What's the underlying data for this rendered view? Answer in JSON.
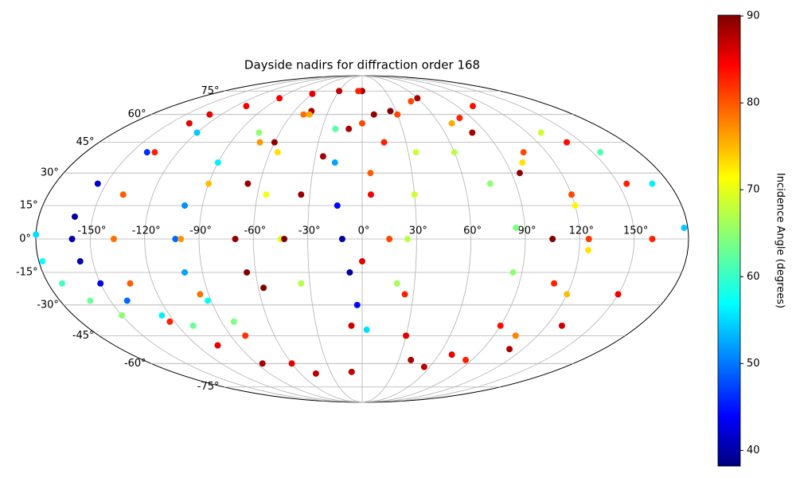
{
  "chart_data": {
    "type": "scatter",
    "projection": "mollweide",
    "colormap": "jet",
    "title": "Dayside nadirs for diffraction order 168",
    "colorbar_label": "Incidence Angle (degrees)",
    "clim": [
      38.2,
      90.1
    ],
    "cticks": [
      40,
      50,
      60,
      70,
      80,
      90
    ],
    "grid": true,
    "xlim": [
      -180,
      180
    ],
    "ylim": [
      -90,
      90
    ],
    "xticks": [
      {
        "value": -150,
        "label": "-150°"
      },
      {
        "value": -120,
        "label": "-120°"
      },
      {
        "value": -90,
        "label": "-90°"
      },
      {
        "value": -60,
        "label": "-60°"
      },
      {
        "value": -30,
        "label": "-30°"
      },
      {
        "value": 0,
        "label": "0°"
      },
      {
        "value": 30,
        "label": "30°"
      },
      {
        "value": 60,
        "label": "60°"
      },
      {
        "value": 90,
        "label": "90°"
      },
      {
        "value": 120,
        "label": "120°"
      },
      {
        "value": 150,
        "label": "150°"
      }
    ],
    "yticks": [
      {
        "value": -75,
        "label": "-75°"
      },
      {
        "value": -60,
        "label": "-60°"
      },
      {
        "value": -45,
        "label": "-45°"
      },
      {
        "value": -30,
        "label": "-30°"
      },
      {
        "value": -15,
        "label": "-15°"
      },
      {
        "value": 0,
        "label": "0°"
      },
      {
        "value": 15,
        "label": "15°"
      },
      {
        "value": 30,
        "label": "30°"
      },
      {
        "value": 45,
        "label": "45°"
      },
      {
        "value": 60,
        "label": "60°"
      },
      {
        "value": 75,
        "label": "75°"
      }
    ],
    "series": [
      {
        "x": [
          -120,
          -140,
          -155,
          -160,
          -160,
          -157,
          -150,
          -140,
          -125,
          -110
        ],
        "y": [
          50,
          40,
          25,
          10,
          0,
          -10,
          -20,
          -28,
          -35,
          -40
        ],
        "values": [
          55,
          47,
          42,
          40,
          40,
          41,
          44,
          50,
          57,
          63
        ]
      },
      {
        "x": [
          -180,
          -178,
          -172,
          -162,
          -150
        ],
        "y": [
          2,
          -10,
          -20,
          -28,
          -35
        ],
        "values": [
          56,
          58,
          61,
          63,
          65
        ]
      },
      {
        "x": [
          -135,
          -135,
          -137,
          -137,
          -133,
          -123,
          -105,
          -85
        ],
        "y": [
          55,
          40,
          20,
          0,
          -20,
          -38,
          -50,
          -60
        ],
        "values": [
          85,
          82,
          79,
          78,
          79,
          82,
          85,
          88
        ]
      },
      {
        "x": [
          -130,
          -110,
          -90,
          -60,
          -30,
          0
        ],
        "y": [
          60,
          65,
          70,
          73,
          75,
          75
        ],
        "values": [
          85,
          84,
          84,
          85,
          87,
          88
        ]
      },
      {
        "x": [
          -75,
          -90,
          -100,
          -103,
          -100,
          -92,
          -82
        ],
        "y": [
          50,
          35,
          15,
          0,
          -15,
          -28,
          -38
        ],
        "values": [
          65,
          57,
          52,
          50,
          53,
          58,
          64
        ]
      },
      {
        "x": [
          -50,
          -70,
          -90,
          -100,
          -95,
          -80,
          -60,
          -45
        ],
        "y": [
          60,
          45,
          25,
          0,
          -25,
          -45,
          -60,
          -66
        ],
        "values": [
          78,
          76,
          74,
          76,
          78,
          81,
          85,
          87
        ]
      },
      {
        "x": [
          -45,
          -60,
          -67,
          -70,
          -65,
          -57
        ],
        "y": [
          62,
          45,
          25,
          0,
          -15,
          -22
        ],
        "values": [
          88,
          89,
          89,
          89,
          90,
          90
        ]
      },
      {
        "x": [
          -45,
          -55,
          -55,
          -45,
          -35
        ],
        "y": [
          60,
          40,
          20,
          0,
          -20
        ],
        "values": [
          75,
          72,
          70,
          69,
          67
        ]
      },
      {
        "x": [
          -20,
          -17,
          -14,
          -11,
          -7,
          -3,
          3
        ],
        "y": [
          52,
          35,
          15,
          0,
          -15,
          -30,
          -42
        ],
        "values": [
          62,
          53,
          45,
          40,
          40,
          45,
          56
        ]
      },
      {
        "x": [
          -43,
          -35,
          -25,
          -10,
          10,
          25
        ],
        "y": [
          0,
          20,
          38,
          52,
          60,
          62
        ],
        "values": [
          90,
          89,
          88,
          88,
          89,
          90
        ]
      },
      {
        "x": [
          -5,
          0,
          5,
          15,
          25,
          30,
          40,
          55,
          70,
          90,
          110,
          125,
          120,
          105,
          80
        ],
        "y": [
          75,
          55,
          30,
          0,
          -25,
          -45,
          -58,
          -62,
          -55,
          -40,
          -20,
          0,
          20,
          40,
          58
        ],
        "values": [
          82,
          80,
          79,
          80,
          82,
          85,
          88,
          87,
          85,
          83,
          82,
          81,
          80,
          80,
          82
        ]
      },
      {
        "x": [
          -10,
          -7,
          0,
          5,
          15,
          30,
          50
        ],
        "y": [
          -65,
          -40,
          -10,
          20,
          45,
          60,
          68
        ],
        "values": [
          87,
          86,
          85,
          84,
          82,
          80,
          80
        ]
      },
      {
        "x": [
          35,
          30,
          25,
          20
        ],
        "y": [
          40,
          20,
          0,
          -20
        ],
        "values": [
          68,
          68,
          67,
          66
        ]
      },
      {
        "x": [
          60,
          75,
          85,
          85
        ],
        "y": [
          40,
          25,
          5,
          -15
        ],
        "values": [
          67,
          65,
          64,
          65
        ]
      },
      {
        "x": [
          60,
          80,
          95,
          105
        ],
        "y": [
          70,
          50,
          30,
          0
        ],
        "values": [
          88,
          88,
          89,
          90
        ]
      },
      {
        "x": [
          70,
          100,
          120,
          125,
          120,
          105,
          85
        ],
        "y": [
          55,
          35,
          15,
          -5,
          -25,
          -45,
          -58
        ],
        "values": [
          75,
          72,
          71,
          72,
          74,
          77,
          82
        ]
      },
      {
        "x": [
          105,
          140,
          155,
          160,
          150,
          130,
          110
        ],
        "y": [
          65,
          45,
          25,
          0,
          -25,
          -40,
          -52
        ],
        "values": [
          83,
          83,
          82,
          82,
          84,
          86,
          88
        ]
      },
      {
        "x": [
          130,
          155,
          170,
          178
        ],
        "y": [
          50,
          40,
          25,
          5
        ],
        "values": [
          68,
          62,
          57,
          55
        ]
      }
    ]
  }
}
